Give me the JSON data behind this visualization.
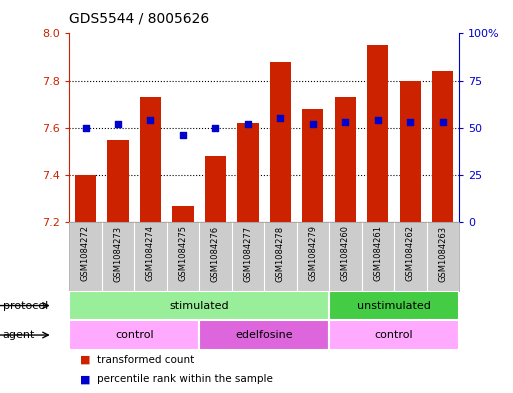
{
  "title": "GDS5544 / 8005626",
  "samples": [
    "GSM1084272",
    "GSM1084273",
    "GSM1084274",
    "GSM1084275",
    "GSM1084276",
    "GSM1084277",
    "GSM1084278",
    "GSM1084279",
    "GSM1084260",
    "GSM1084261",
    "GSM1084262",
    "GSM1084263"
  ],
  "transformed_count": [
    7.4,
    7.55,
    7.73,
    7.27,
    7.48,
    7.62,
    7.88,
    7.68,
    7.73,
    7.95,
    7.8,
    7.84
  ],
  "percentile_rank": [
    50,
    52,
    54,
    46,
    50,
    52,
    55,
    52,
    53,
    54,
    53,
    53
  ],
  "ylim_left": [
    7.2,
    8.0
  ],
  "ylim_right": [
    0,
    100
  ],
  "yticks_left": [
    7.2,
    7.4,
    7.6,
    7.8,
    8.0
  ],
  "yticks_right": [
    0,
    25,
    50,
    75,
    100
  ],
  "ytick_labels_right": [
    "0",
    "25",
    "50",
    "75",
    "100%"
  ],
  "bar_color": "#cc2200",
  "dot_color": "#0000cc",
  "protocol_groups": [
    {
      "label": "stimulated",
      "start": 0,
      "end": 8,
      "color": "#99ee99"
    },
    {
      "label": "unstimulated",
      "start": 8,
      "end": 12,
      "color": "#44cc44"
    }
  ],
  "agent_groups": [
    {
      "label": "control",
      "start": 0,
      "end": 4,
      "color": "#ffaaff"
    },
    {
      "label": "edelfosine",
      "start": 4,
      "end": 8,
      "color": "#dd66dd"
    },
    {
      "label": "control",
      "start": 8,
      "end": 12,
      "color": "#ffaaff"
    }
  ],
  "legend_items": [
    {
      "label": "transformed count",
      "color": "#cc2200"
    },
    {
      "label": "percentile rank within the sample",
      "color": "#0000cc"
    }
  ],
  "grid_yticks": [
    7.4,
    7.6,
    7.8
  ],
  "label_bg_color": "#cccccc",
  "label_border_color": "#999999"
}
